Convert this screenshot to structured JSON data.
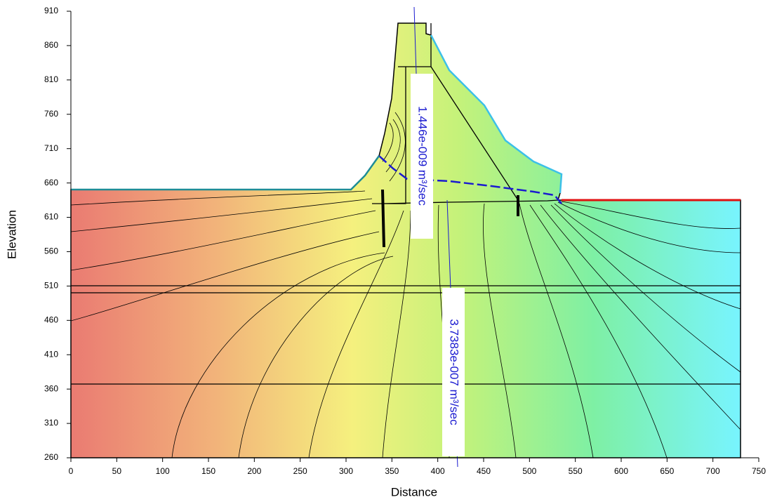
{
  "chart_data": {
    "type": "section",
    "x_label": "Distance",
    "y_label": "Elevation",
    "xlim": [
      0,
      750
    ],
    "ylim": [
      260,
      910
    ],
    "xticks": [
      0,
      50,
      100,
      150,
      200,
      250,
      300,
      350,
      400,
      450,
      500,
      550,
      600,
      650,
      700,
      750
    ],
    "yticks": [
      260,
      310,
      360,
      410,
      460,
      510,
      560,
      610,
      660,
      710,
      760,
      810,
      860,
      910
    ],
    "annotations": [
      "1.446e-009 m³/sec",
      "3.7383e-007 m³/sec"
    ]
  }
}
